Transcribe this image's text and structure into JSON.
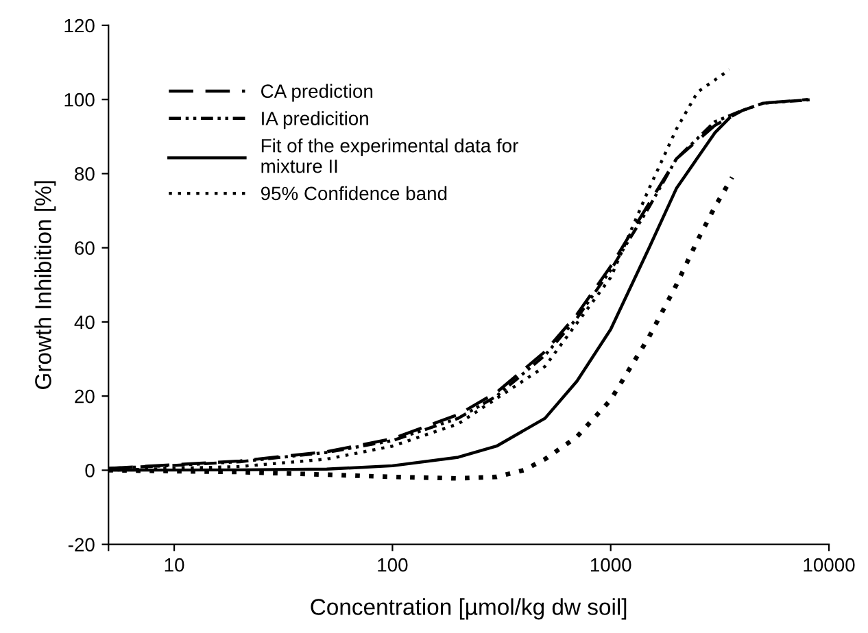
{
  "chart_data": {
    "type": "line",
    "xlabel": "Concentration [µmol/kg dw soil]",
    "ylabel": "Growth Inhibition [%]",
    "log": "x",
    "xlim": [
      5,
      10000
    ],
    "xticks": [
      {
        "value": 5,
        "label": null
      },
      10,
      100,
      1000,
      10000
    ],
    "ylim": [
      -20,
      120
    ],
    "yticks": [
      -20,
      0,
      20,
      40,
      60,
      80,
      100,
      120
    ],
    "grid": false,
    "legend": "top left",
    "series": [
      {
        "name": "CA prediction",
        "color": "#000000",
        "line_style": "dashed",
        "x": [
          5,
          10,
          20,
          50,
          100,
          200,
          300,
          500,
          700,
          1000,
          1500,
          2000,
          3000,
          4000,
          5000,
          8000
        ],
        "values": [
          0.5,
          1.5,
          2.5,
          5,
          8.5,
          15,
          21,
          32,
          42,
          55,
          72,
          84,
          93,
          97,
          99,
          100
        ]
      },
      {
        "name": "IA predicition",
        "color": "#000000",
        "line_style": "dashdotdot",
        "x": [
          5,
          10,
          20,
          50,
          100,
          200,
          300,
          500,
          700,
          1000,
          1500,
          2000,
          3000,
          4000,
          5000,
          8500
        ],
        "values": [
          0.5,
          1.3,
          2.3,
          4.8,
          8,
          14,
          20,
          31,
          41,
          54,
          71,
          84,
          94,
          97,
          99,
          100
        ]
      },
      {
        "name": "Fit of the experimental data for\nmixture II",
        "color": "#000000",
        "line_style": "solid",
        "x": [
          5,
          20,
          50,
          100,
          200,
          300,
          500,
          700,
          1000,
          1500,
          2000,
          3000,
          3500
        ],
        "values": [
          0,
          0.1,
          0.3,
          1.2,
          3.5,
          6.5,
          14,
          24,
          38,
          60,
          76,
          91,
          95
        ]
      },
      {
        "name": "95% Confidence band",
        "color": "#000000",
        "line_style": "dotted",
        "x": [
          5,
          20,
          50,
          100,
          200,
          500,
          1000,
          1500,
          2000,
          2500,
          3500
        ],
        "values": [
          0,
          1,
          3,
          6.5,
          12.5,
          28,
          52,
          76,
          92,
          102,
          108
        ]
      },
      {
        "color": "#000000",
        "line_style": "dotted",
        "x": [
          5,
          20,
          50,
          100,
          200,
          300,
          400,
          500,
          700,
          1000,
          1500,
          2000,
          2500,
          3000,
          3600
        ],
        "values": [
          0,
          -0.5,
          -1.2,
          -1.8,
          -2.2,
          -1.8,
          0,
          3,
          9,
          19,
          36,
          50,
          62,
          71,
          79
        ]
      }
    ]
  }
}
